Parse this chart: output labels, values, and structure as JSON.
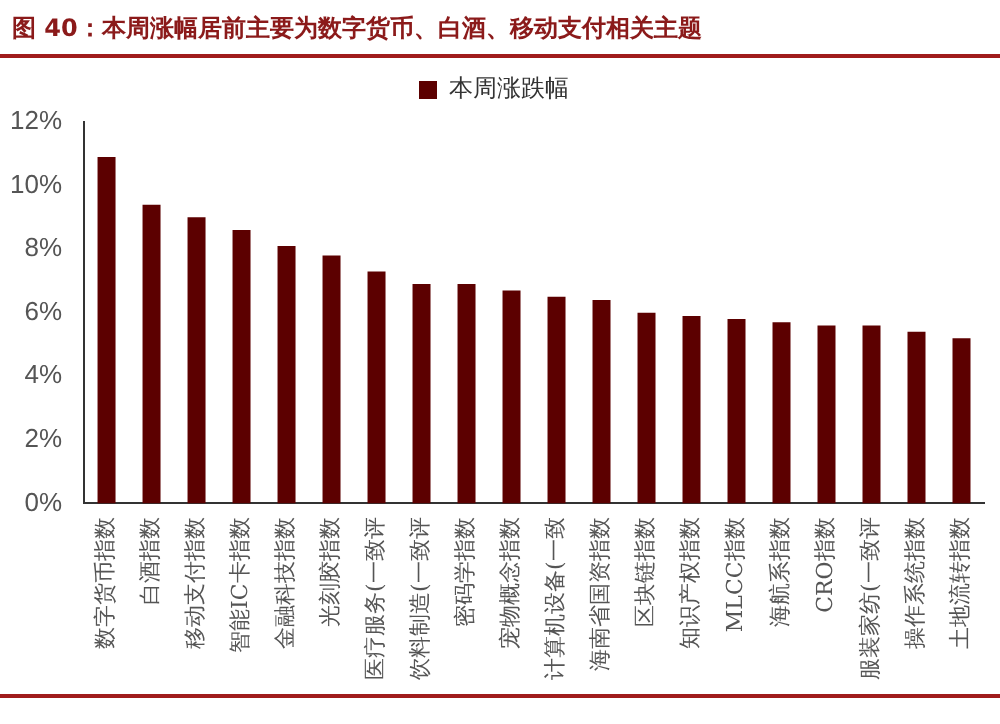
{
  "chart_data": {
    "type": "bar",
    "title": "图 40：本周涨幅居前主要为数字货币、白酒、移动支付相关主题",
    "categories": [
      "数字货币指数",
      "白酒指数",
      "移动支付指数",
      "智能IC卡指数",
      "金融科技指数",
      "光刻胶指数",
      "医疗服务(一致评",
      "饮料制造(一致评",
      "密码学指数",
      "宠物概念指数",
      "计算机设备(一致",
      "海南省国资指数",
      "区块链指数",
      "知识产权指数",
      "MLCC指数",
      "海航系指数",
      "CRO指数",
      "服装家纺(一致评",
      "操作系统指数",
      "土地流转指数"
    ],
    "series": [
      {
        "name": "本周涨跌幅",
        "color": "#5c0000",
        "values": [
          10.9,
          9.4,
          9.0,
          8.6,
          8.1,
          7.8,
          7.3,
          6.9,
          6.9,
          6.7,
          6.5,
          6.4,
          6.0,
          5.9,
          5.8,
          5.7,
          5.6,
          5.6,
          5.4,
          5.2
        ]
      }
    ],
    "ylim": [
      0,
      12
    ],
    "yticks": [
      {
        "value": 0,
        "label": "0%"
      },
      {
        "value": 2,
        "label": "2%"
      },
      {
        "value": 4,
        "label": "4%"
      },
      {
        "value": 6,
        "label": "6%"
      },
      {
        "value": 8,
        "label": "8%"
      },
      {
        "value": 10,
        "label": "10%"
      },
      {
        "value": 12,
        "label": "12%"
      }
    ],
    "legend": "top",
    "grid": false
  }
}
